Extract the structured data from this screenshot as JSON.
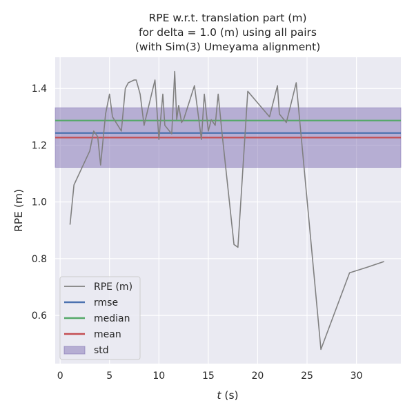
{
  "chart_data": {
    "type": "line",
    "title_lines": [
      "RPE w.r.t. translation part (m)",
      "for delta = 1.0 (m) using all pairs",
      "(with Sim(3) Umeyama alignment)"
    ],
    "xlabel_italic": "t",
    "xlabel_rest": " (s)",
    "ylabel": "RPE (m)",
    "xlim": [
      -0.5,
      34.5
    ],
    "ylim": [
      0.43,
      1.51
    ],
    "x_ticks": [
      0,
      5,
      10,
      15,
      20,
      25,
      30
    ],
    "y_ticks": [
      0.6,
      0.8,
      1.0,
      1.2,
      1.4
    ],
    "y_tick_labels": [
      "0.6",
      "0.8",
      "1.0",
      "1.2",
      "1.4"
    ],
    "grid": true,
    "legend_position": "lower-left",
    "series": [
      {
        "name": "RPE (m)",
        "color": "#808080",
        "x": [
          1.0,
          1.4,
          3.0,
          3.4,
          3.8,
          4.1,
          4.6,
          5.0,
          5.3,
          6.2,
          6.6,
          6.9,
          7.5,
          7.7,
          8.1,
          8.5,
          9.6,
          10.0,
          10.4,
          10.6,
          11.3,
          11.6,
          11.8,
          12.0,
          12.3,
          12.5,
          13.6,
          14.3,
          14.6,
          15.0,
          15.3,
          15.7,
          16.0,
          16.4,
          17.6,
          18.0,
          19.0,
          21.2,
          22.0,
          22.2,
          22.9,
          23.9,
          26.4,
          29.3,
          31.1,
          32.8
        ],
        "y": [
          0.92,
          1.06,
          1.18,
          1.25,
          1.23,
          1.13,
          1.31,
          1.38,
          1.3,
          1.25,
          1.4,
          1.42,
          1.43,
          1.43,
          1.38,
          1.27,
          1.43,
          1.22,
          1.38,
          1.27,
          1.24,
          1.46,
          1.29,
          1.34,
          1.28,
          1.29,
          1.41,
          1.22,
          1.38,
          1.25,
          1.29,
          1.27,
          1.38,
          1.24,
          0.85,
          0.84,
          1.39,
          1.3,
          1.41,
          1.31,
          1.28,
          1.42,
          0.48,
          0.75,
          0.77,
          0.79
        ]
      },
      {
        "name": "rmse",
        "color": "#4c72b0",
        "value": 1.243
      },
      {
        "name": "median",
        "color": "#55a868",
        "value": 1.287
      },
      {
        "name": "mean",
        "color": "#c44e52",
        "value": 1.227
      }
    ],
    "std_band": {
      "name": "std",
      "color": "#8172b3",
      "lower": 1.122,
      "upper": 1.332
    },
    "legend_entries": [
      "RPE (m)",
      "rmse",
      "median",
      "mean",
      "std"
    ]
  }
}
